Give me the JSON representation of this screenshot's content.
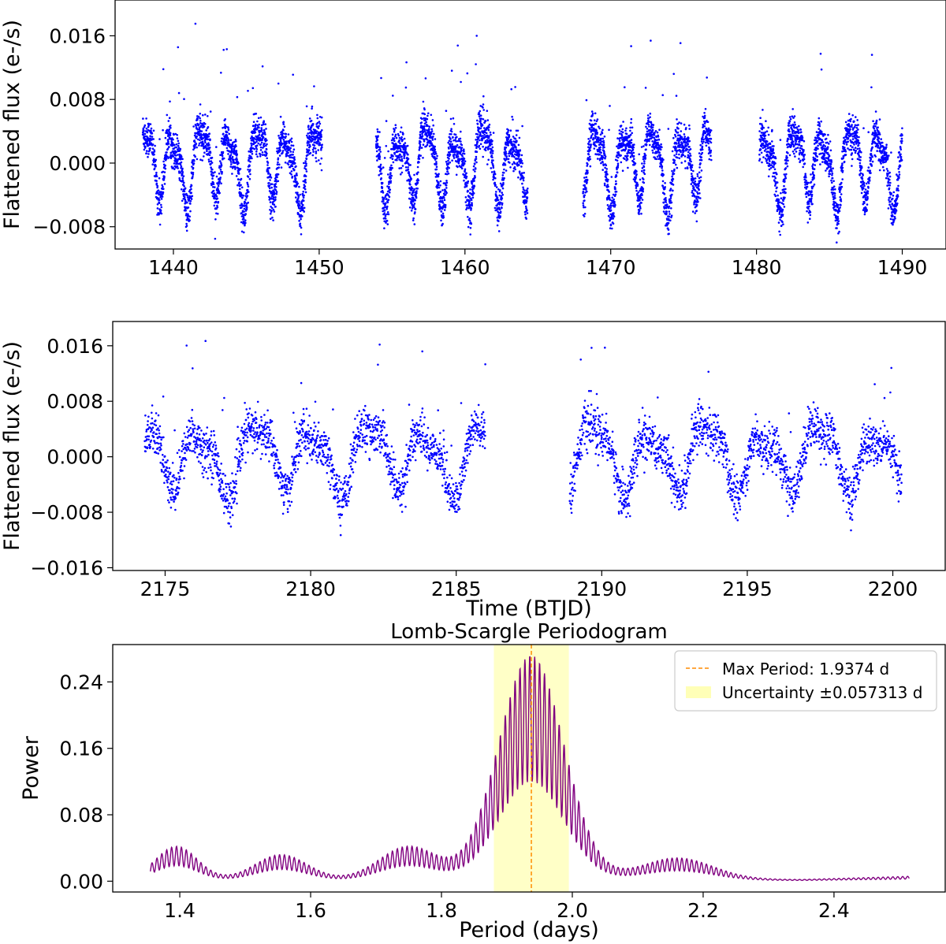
{
  "chart_data": [
    {
      "type": "scatter",
      "id": "lc1",
      "ylabel": "Flattened flux (e-/s)",
      "xlabel": "",
      "xlim": [
        1436,
        1493
      ],
      "ylim": [
        -0.0108,
        0.0205
      ],
      "xticks": [
        1440,
        1450,
        1460,
        1470,
        1480,
        1490
      ],
      "yticks": [
        -0.008,
        0.0,
        0.008,
        0.016
      ],
      "ytick_labels": [
        "−0.008",
        "0.000",
        "0.008",
        "0.016"
      ],
      "color": "#0000ff",
      "segments": [
        {
          "x_start": 1437.9,
          "x_end": 1450.2
        },
        {
          "x_start": 1453.9,
          "x_end": 1464.3
        },
        {
          "x_start": 1468.1,
          "x_end": 1476.9
        },
        {
          "x_start": 1480.2,
          "x_end": 1490.0
        }
      ],
      "amplitude": 0.0055,
      "period": 1.9374,
      "noise": 0.0012
    },
    {
      "type": "scatter",
      "id": "lc2",
      "ylabel": "Flattened flux (e-/s)",
      "xlabel": "Time (BTJD)",
      "xlim": [
        2173.2,
        2201.8
      ],
      "ylim": [
        -0.0164,
        0.0195
      ],
      "xticks": [
        2175,
        2180,
        2185,
        2190,
        2195,
        2200
      ],
      "yticks": [
        -0.016,
        -0.008,
        0.0,
        0.008,
        0.016
      ],
      "ytick_labels": [
        "−0.016",
        "−0.008",
        "0.000",
        "0.008",
        "0.016"
      ],
      "color": "#0000ff",
      "segments": [
        {
          "x_start": 2174.3,
          "x_end": 2186.0
        },
        {
          "x_start": 2188.9,
          "x_end": 2200.3
        }
      ],
      "amplitude": 0.0055,
      "period": 1.9374,
      "noise": 0.0016
    },
    {
      "type": "line",
      "id": "pgram",
      "title": "Lomb-Scargle Periodogram",
      "xlabel": "Period (days)",
      "ylabel": "Power",
      "xlim": [
        1.2975,
        2.57
      ],
      "ylim": [
        -0.013,
        0.285
      ],
      "xticks": [
        1.4,
        1.6,
        1.8,
        2.0,
        2.2,
        2.4
      ],
      "xtick_labels": [
        "1.4",
        "1.6",
        "1.8",
        "2.0",
        "2.2",
        "2.4"
      ],
      "yticks": [
        0.0,
        0.08,
        0.16,
        0.24
      ],
      "ytick_labels": [
        "0.00",
        "0.08",
        "0.16",
        "0.24"
      ],
      "line_color": "#800080",
      "period_range": [
        1.355,
        2.515
      ],
      "peaks": [
        {
          "period": 1.395,
          "power": 0.04
        },
        {
          "period": 1.555,
          "power": 0.03
        },
        {
          "period": 1.75,
          "power": 0.04
        },
        {
          "period": 1.937,
          "power": 0.27
        },
        {
          "period": 2.16,
          "power": 0.026
        }
      ],
      "max_period": 1.9374,
      "uncertainty": 0.057313,
      "max_line_color": "#ff8c00",
      "band_color": "#ffff99",
      "legend_position": "top-right",
      "legend": [
        {
          "label": "Max Period: 1.9374 d",
          "marker": "dashed-line"
        },
        {
          "label": "Uncertainty ±0.057313 d",
          "marker": "patch"
        }
      ]
    }
  ]
}
